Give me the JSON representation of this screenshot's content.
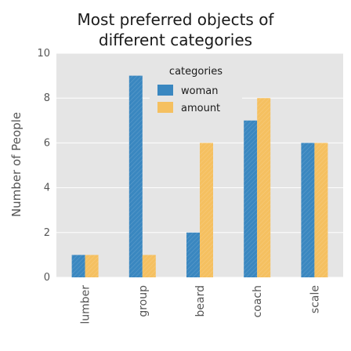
{
  "chart_data": {
    "type": "bar",
    "title": "Most preferred objects of different categories",
    "title_lines": [
      "Most preferred objects of",
      "different categories"
    ],
    "xlabel": "",
    "ylabel": "Number of People",
    "categories": [
      "lumber",
      "group",
      "beard",
      "coach",
      "scale"
    ],
    "series": [
      {
        "name": "woman",
        "values": [
          1,
          9,
          2,
          7,
          6
        ],
        "color": "#3a87c0"
      },
      {
        "name": "amount",
        "values": [
          1,
          1,
          6,
          8,
          6
        ],
        "color": "#f5c060"
      }
    ],
    "ylim": [
      0,
      10
    ],
    "yticks": [
      0,
      2,
      4,
      6,
      8,
      10
    ],
    "legend_title": "categories",
    "legend_position": "top-center",
    "grid": true,
    "background_color": "#e5e5e5",
    "grid_color": "#ffffff",
    "bar_pattern": "hatched"
  }
}
